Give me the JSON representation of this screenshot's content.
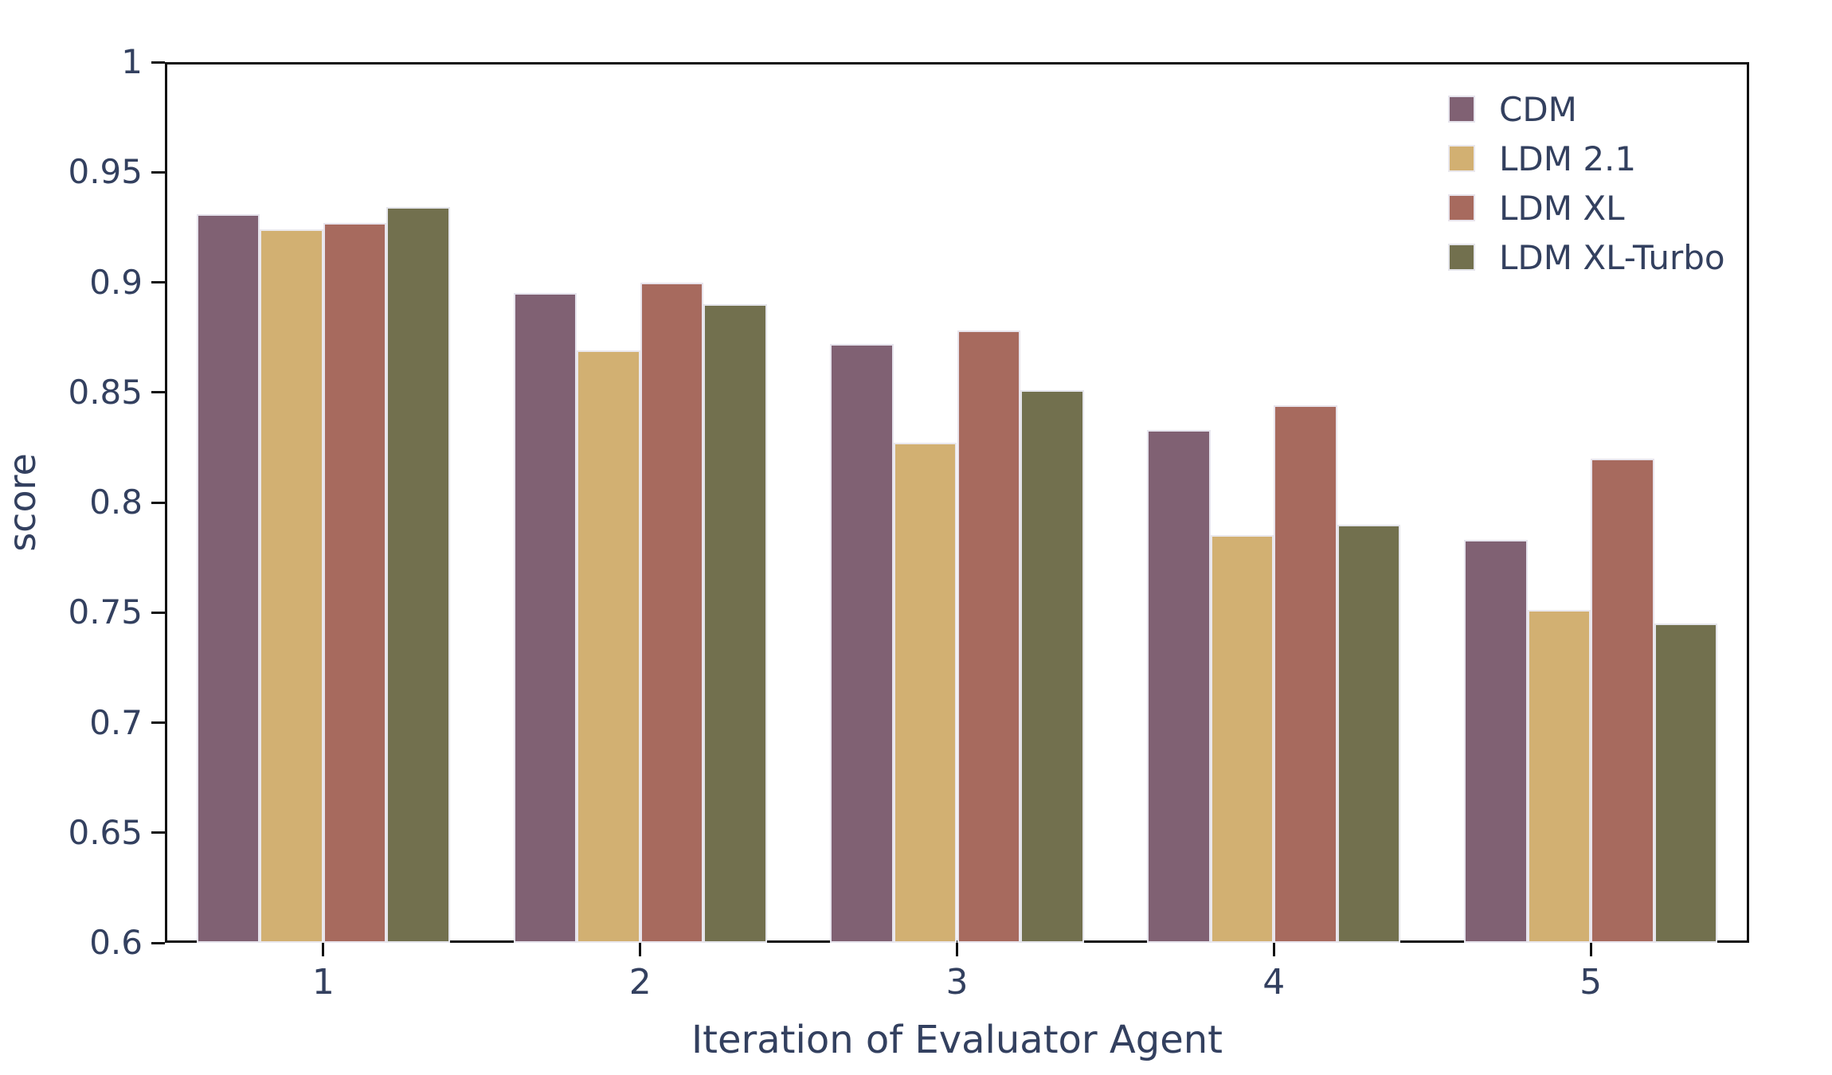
{
  "chart_data": {
    "type": "bar",
    "title": "",
    "xlabel": "Iteration of Evaluator Agent",
    "ylabel": "score",
    "categories": [
      "1",
      "2",
      "3",
      "4",
      "5"
    ],
    "series": [
      {
        "name": "CDM",
        "color": "#806173",
        "values": [
          0.931,
          0.895,
          0.872,
          0.833,
          0.783
        ]
      },
      {
        "name": "LDM 2.1",
        "color": "#D2B072",
        "values": [
          0.924,
          0.869,
          0.827,
          0.785,
          0.751
        ]
      },
      {
        "name": "LDM XL",
        "color": "#A76A5E",
        "values": [
          0.927,
          0.9,
          0.878,
          0.844,
          0.82
        ]
      },
      {
        "name": "LDM XL-Turbo",
        "color": "#72704E",
        "values": [
          0.934,
          0.89,
          0.851,
          0.79,
          0.745
        ]
      }
    ],
    "ylim": [
      0.6,
      1.0
    ],
    "ytick_step": 0.05,
    "ytick_labels": [
      "1",
      "0.95",
      "0.9",
      "0.85",
      "0.8",
      "0.75",
      "0.7",
      "0.65",
      "0.6"
    ],
    "legend_position": "upper right",
    "grid": false
  },
  "style": {
    "text_color": "#33405F",
    "axis_color": "#111111",
    "bar_edge_color": "#EBEBF3",
    "background": "#FFFFFF"
  }
}
